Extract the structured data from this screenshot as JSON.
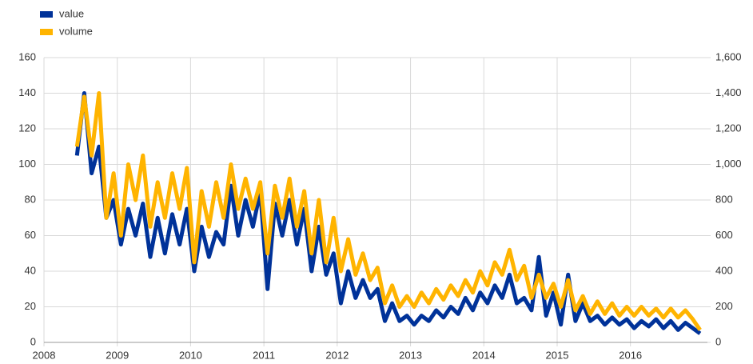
{
  "chart_data": {
    "type": "line",
    "x": [
      2008.45,
      2008.55,
      2008.65,
      2008.75,
      2008.85,
      2008.95,
      2009.05,
      2009.15,
      2009.25,
      2009.35,
      2009.45,
      2009.55,
      2009.65,
      2009.75,
      2009.85,
      2009.95,
      2010.05,
      2010.15,
      2010.25,
      2010.35,
      2010.45,
      2010.55,
      2010.65,
      2010.75,
      2010.85,
      2010.95,
      2011.05,
      2011.15,
      2011.25,
      2011.35,
      2011.45,
      2011.55,
      2011.65,
      2011.75,
      2011.85,
      2011.95,
      2012.05,
      2012.15,
      2012.25,
      2012.35,
      2012.45,
      2012.55,
      2012.65,
      2012.75,
      2012.85,
      2012.95,
      2013.05,
      2013.15,
      2013.25,
      2013.35,
      2013.45,
      2013.55,
      2013.65,
      2013.75,
      2013.85,
      2013.95,
      2014.05,
      2014.15,
      2014.25,
      2014.35,
      2014.45,
      2014.55,
      2014.65,
      2014.75,
      2014.85,
      2014.95,
      2015.05,
      2015.15,
      2015.25,
      2015.35,
      2015.45,
      2015.55,
      2015.65,
      2015.75,
      2015.85,
      2015.95,
      2016.05,
      2016.15,
      2016.25,
      2016.35,
      2016.45,
      2016.55,
      2016.65,
      2016.75,
      2016.85,
      2016.95
    ],
    "series": [
      {
        "name": "value",
        "color": "#003299",
        "axis": "y",
        "values": [
          105,
          140,
          95,
          110,
          70,
          80,
          55,
          75,
          60,
          78,
          48,
          70,
          50,
          72,
          55,
          75,
          40,
          65,
          48,
          62,
          55,
          88,
          60,
          80,
          65,
          85,
          30,
          78,
          60,
          80,
          55,
          75,
          40,
          65,
          38,
          50,
          22,
          40,
          25,
          35,
          25,
          30,
          12,
          22,
          12,
          15,
          10,
          15,
          12,
          18,
          14,
          20,
          16,
          25,
          18,
          28,
          22,
          32,
          25,
          38,
          22,
          25,
          18,
          48,
          15,
          28,
          10,
          38,
          12,
          22,
          12,
          15,
          10,
          14,
          10,
          13,
          8,
          12,
          9,
          13,
          8,
          12,
          7,
          11,
          8,
          5
        ]
      },
      {
        "name": "volume",
        "color": "#ffb400",
        "axis": "y2",
        "values": [
          1100,
          1380,
          1050,
          1400,
          700,
          950,
          600,
          1000,
          800,
          1050,
          650,
          900,
          700,
          950,
          750,
          980,
          450,
          850,
          650,
          900,
          700,
          1000,
          750,
          920,
          750,
          900,
          500,
          880,
          700,
          920,
          650,
          850,
          500,
          800,
          450,
          700,
          400,
          580,
          380,
          500,
          350,
          420,
          220,
          320,
          200,
          260,
          200,
          280,
          220,
          300,
          240,
          320,
          260,
          350,
          280,
          400,
          320,
          450,
          380,
          520,
          350,
          430,
          250,
          380,
          250,
          330,
          200,
          350,
          180,
          260,
          160,
          230,
          160,
          220,
          150,
          200,
          150,
          200,
          150,
          190,
          140,
          190,
          140,
          180,
          130,
          70
        ]
      }
    ],
    "xlim": [
      2008,
      2017.05
    ],
    "xticks": [
      2008,
      2009,
      2010,
      2011,
      2012,
      2013,
      2014,
      2015,
      2016
    ],
    "ylim": [
      0,
      160
    ],
    "yticks": [
      0,
      20,
      40,
      60,
      80,
      100,
      120,
      140,
      160
    ],
    "y2lim": [
      0,
      1600
    ],
    "y2ticks": [
      0,
      200,
      400,
      600,
      800,
      {
        "value": 1000,
        "label": "1,000"
      },
      {
        "value": 1200,
        "label": "1,200"
      },
      {
        "value": 1400,
        "label": "1,400"
      },
      {
        "value": 1600,
        "label": "1,600"
      }
    ],
    "grid": true,
    "legend": "top-left"
  }
}
